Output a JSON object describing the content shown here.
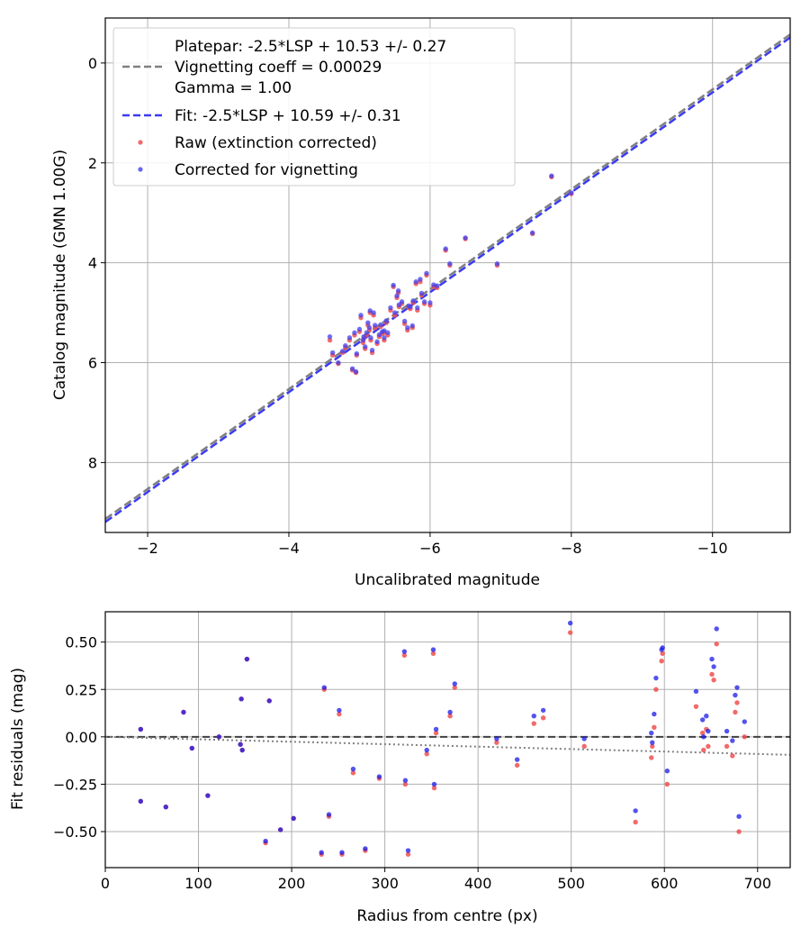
{
  "chart_data": [
    {
      "type": "scatter",
      "xlabel": "Uncalibrated magnitude",
      "ylabel": "Catalog magnitude (GMN 1.00G)",
      "xlim": [
        -1.4,
        -11.1
      ],
      "ylim": [
        9.4,
        -0.9
      ],
      "xticks": [
        -2,
        -4,
        -6,
        -8,
        -10
      ],
      "xtick_labels": [
        "−2",
        "−4",
        "−6",
        "−8",
        "−10"
      ],
      "yticks": [
        0,
        2,
        4,
        6,
        8
      ],
      "ytick_labels": [
        "0",
        "2",
        "4",
        "6",
        "8"
      ],
      "grid": true,
      "legend_position": "top-left",
      "legend": {
        "platepar_lines": [
          "Platepar: -2.5*LSP + 10.53 +/- 0.27",
          "Vignetting coeff = 0.00029",
          "Gamma = 1.00"
        ],
        "fit": "Fit: -2.5*LSP + 10.59 +/- 0.31",
        "raw": "Raw (extinction corrected)",
        "corrected": "Corrected for vignetting"
      },
      "lines": [
        {
          "name": "Platepar",
          "zero_point": 10.53,
          "color": "#808080"
        },
        {
          "name": "Fit",
          "zero_point": 10.59,
          "color": "#3b3bf2"
        }
      ],
      "series": [
        {
          "name": "Raw (extinction corrected)",
          "color": "#f05050",
          "x": [
            -4.58,
            -4.62,
            -4.7,
            -4.76,
            -4.86,
            -4.9,
            -4.93,
            -4.96,
            -5.0,
            -5.02,
            -5.05,
            -5.06,
            -5.08,
            -5.1,
            -5.12,
            -5.14,
            -5.16,
            -5.18,
            -5.2,
            -5.22,
            -5.25,
            -5.28,
            -5.3,
            -5.32,
            -5.35,
            -5.38,
            -5.4,
            -5.44,
            -5.48,
            -5.5,
            -5.53,
            -5.56,
            -5.6,
            -5.64,
            -5.68,
            -5.72,
            -5.76,
            -5.8,
            -5.82,
            -5.86,
            -5.88,
            -5.92,
            -6.0,
            -6.05,
            -6.1,
            -6.22,
            -6.28,
            -6.5,
            -6.95,
            -7.45,
            -7.72,
            -8.0,
            -4.95,
            -5.15,
            -5.35,
            -5.55,
            -5.75,
            -5.95,
            -4.8,
            -5.7
          ],
          "y": [
            5.55,
            5.85,
            6.02,
            5.8,
            5.55,
            6.15,
            5.45,
            5.85,
            5.38,
            5.1,
            5.6,
            5.52,
            5.72,
            5.45,
            5.25,
            5.35,
            5.55,
            5.8,
            5.05,
            5.3,
            5.62,
            5.48,
            5.28,
            5.42,
            5.55,
            5.2,
            5.45,
            4.95,
            4.48,
            5.05,
            4.7,
            4.88,
            4.82,
            5.22,
            5.35,
            4.92,
            4.8,
            4.42,
            4.95,
            4.38,
            4.65,
            4.82,
            4.85,
            4.48,
            4.5,
            3.75,
            4.05,
            3.52,
            4.05,
            3.42,
            2.28,
            2.62,
            6.2,
            5.0,
            5.4,
            4.6,
            5.3,
            4.25,
            5.7,
            4.9
          ]
        },
        {
          "name": "Corrected for vignetting",
          "color": "#4040f0",
          "x": [
            -4.58,
            -4.62,
            -4.7,
            -4.76,
            -4.86,
            -4.9,
            -4.93,
            -4.96,
            -5.0,
            -5.02,
            -5.05,
            -5.06,
            -5.08,
            -5.1,
            -5.12,
            -5.14,
            -5.16,
            -5.18,
            -5.2,
            -5.22,
            -5.25,
            -5.28,
            -5.3,
            -5.32,
            -5.35,
            -5.38,
            -5.4,
            -5.44,
            -5.48,
            -5.5,
            -5.53,
            -5.56,
            -5.6,
            -5.64,
            -5.68,
            -5.72,
            -5.76,
            -5.8,
            -5.82,
            -5.86,
            -5.88,
            -5.92,
            -6.0,
            -6.05,
            -6.1,
            -6.22,
            -6.28,
            -6.5,
            -6.95,
            -7.45,
            -7.72,
            -8.0,
            -4.95,
            -5.15,
            -5.35,
            -5.55,
            -5.75,
            -5.95,
            -4.8,
            -5.7
          ],
          "y": [
            5.48,
            5.8,
            6.0,
            5.77,
            5.5,
            6.12,
            5.4,
            5.82,
            5.33,
            5.05,
            5.55,
            5.48,
            5.68,
            5.4,
            5.2,
            5.3,
            5.5,
            5.75,
            5.0,
            5.25,
            5.58,
            5.44,
            5.24,
            5.38,
            5.5,
            5.16,
            5.4,
            4.9,
            4.45,
            5.0,
            4.66,
            4.84,
            4.78,
            5.17,
            5.3,
            4.88,
            4.76,
            4.38,
            4.9,
            4.33,
            4.61,
            4.78,
            4.8,
            4.44,
            4.46,
            3.72,
            4.02,
            3.5,
            4.02,
            3.4,
            2.26,
            2.6,
            6.18,
            4.96,
            5.36,
            4.56,
            5.26,
            4.21,
            5.66,
            4.86
          ]
        }
      ]
    },
    {
      "type": "scatter",
      "xlabel": "Radius from centre (px)",
      "ylabel": "Fit residuals (mag)",
      "xlim": [
        0,
        735
      ],
      "ylim": [
        -0.69,
        0.66
      ],
      "xticks": [
        0,
        100,
        200,
        300,
        400,
        500,
        600,
        700
      ],
      "xtick_labels": [
        "0",
        "100",
        "200",
        "300",
        "400",
        "500",
        "600",
        "700"
      ],
      "yticks": [
        0.5,
        0.25,
        0,
        -0.25,
        -0.5
      ],
      "ytick_labels": [
        "0.50",
        "0.25",
        "0.00",
        "−0.25",
        "−0.50"
      ],
      "grid": true,
      "reference_lines": [
        {
          "name": "zero",
          "style": "dashed",
          "color": "#404040",
          "x": [
            0,
            735
          ],
          "y": [
            0,
            0
          ]
        },
        {
          "name": "vignetting",
          "style": "dotted",
          "color": "#808080",
          "x": [
            0,
            735
          ],
          "y": [
            0,
            -0.095
          ]
        }
      ],
      "series": [
        {
          "name": "Raw",
          "color": "#f05050",
          "x": [
            38,
            38,
            65,
            84,
            93,
            110,
            122,
            145,
            146,
            147,
            152,
            172,
            176,
            188,
            202,
            232,
            235,
            240,
            251,
            254,
            266,
            279,
            294,
            321,
            322,
            325,
            345,
            352,
            353,
            355,
            370,
            375,
            420,
            442,
            460,
            470,
            499,
            514,
            569,
            586,
            587,
            589,
            591,
            597,
            598,
            603,
            634,
            641,
            642,
            645,
            647,
            651,
            653,
            656,
            667,
            673,
            676,
            678,
            680,
            686
          ],
          "y": [
            0.04,
            -0.34,
            -0.37,
            0.13,
            -0.06,
            -0.31,
            0.0,
            -0.04,
            0.2,
            -0.07,
            0.41,
            -0.56,
            0.19,
            -0.49,
            -0.43,
            -0.62,
            0.25,
            -0.42,
            0.12,
            -0.62,
            -0.19,
            -0.6,
            -0.22,
            0.43,
            -0.25,
            -0.62,
            -0.09,
            0.44,
            -0.27,
            0.02,
            0.11,
            0.26,
            -0.03,
            -0.15,
            0.07,
            0.1,
            0.55,
            -0.05,
            -0.45,
            -0.11,
            -0.05,
            0.05,
            0.25,
            0.4,
            0.44,
            -0.25,
            0.16,
            0.02,
            -0.07,
            0.04,
            -0.05,
            0.33,
            0.3,
            0.49,
            -0.05,
            -0.1,
            0.13,
            0.18,
            -0.5,
            0.0
          ]
        },
        {
          "name": "Corrected",
          "color": "#1a1ae8",
          "x": [
            38,
            38,
            65,
            84,
            93,
            110,
            122,
            145,
            146,
            147,
            152,
            172,
            176,
            188,
            202,
            232,
            235,
            240,
            251,
            254,
            266,
            279,
            294,
            321,
            322,
            325,
            345,
            352,
            353,
            355,
            370,
            375,
            420,
            442,
            460,
            470,
            499,
            514,
            569,
            586,
            587,
            589,
            591,
            597,
            598,
            603,
            634,
            641,
            642,
            645,
            647,
            651,
            653,
            656,
            667,
            673,
            676,
            678,
            680,
            686
          ],
          "y": [
            0.04,
            -0.34,
            -0.37,
            0.13,
            -0.06,
            -0.31,
            0.0,
            -0.04,
            0.2,
            -0.07,
            0.41,
            -0.55,
            0.19,
            -0.49,
            -0.43,
            -0.61,
            0.26,
            -0.41,
            0.14,
            -0.61,
            -0.17,
            -0.59,
            -0.21,
            0.45,
            -0.23,
            -0.6,
            -0.07,
            0.46,
            -0.25,
            0.04,
            0.13,
            0.28,
            -0.01,
            -0.12,
            0.11,
            0.14,
            0.6,
            -0.01,
            -0.39,
            0.02,
            -0.03,
            0.12,
            0.31,
            0.46,
            0.47,
            -0.18,
            0.24,
            0.09,
            0.0,
            0.11,
            0.03,
            0.41,
            0.37,
            0.57,
            0.03,
            -0.02,
            0.22,
            0.26,
            -0.42,
            0.08
          ]
        }
      ]
    }
  ]
}
